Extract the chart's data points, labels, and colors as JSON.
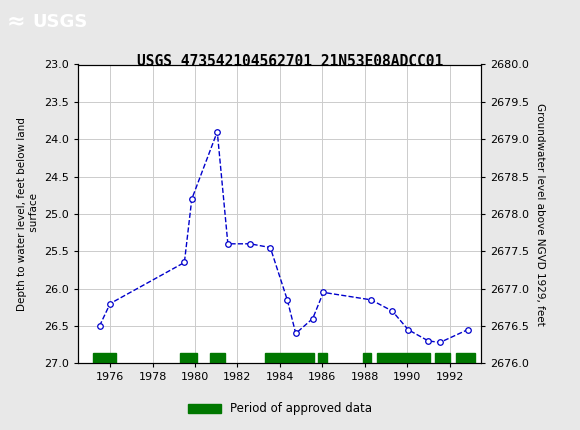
{
  "title": "USGS 473542104562701 21N53E08ADCC01",
  "ylabel_left": "Depth to water level, feet below land\n surface",
  "ylabel_right": "Groundwater level above NGVD 1929, feet",
  "x_data": [
    1975.5,
    1976.0,
    1979.5,
    1979.85,
    1981.05,
    1981.55,
    1982.6,
    1983.55,
    1984.35,
    1984.75,
    1985.55,
    1986.05,
    1988.3,
    1989.3,
    1990.05,
    1991.0,
    1991.55,
    1992.85
  ],
  "y_data": [
    26.5,
    26.2,
    25.65,
    24.8,
    23.9,
    25.4,
    25.4,
    25.45,
    26.15,
    26.6,
    26.4,
    26.05,
    26.15,
    26.3,
    26.55,
    26.7,
    26.72,
    26.55
  ],
  "y_left_min": 23.0,
  "y_left_max": 27.0,
  "y_right_min": 2676.0,
  "y_right_max": 2680.0,
  "x_min": 1974.5,
  "x_max": 1993.5,
  "x_ticks": [
    1976,
    1978,
    1980,
    1982,
    1984,
    1986,
    1988,
    1990,
    1992
  ],
  "y_left_ticks": [
    23.0,
    23.5,
    24.0,
    24.5,
    25.0,
    25.5,
    26.0,
    26.5,
    27.0
  ],
  "y_right_ticks": [
    2680.0,
    2679.5,
    2679.0,
    2678.5,
    2678.0,
    2677.5,
    2677.0,
    2676.5,
    2676.0
  ],
  "line_color": "#0000cc",
  "marker_color": "#0000cc",
  "line_style": "--",
  "marker_style": "o",
  "marker_size": 4,
  "grid_color": "#cccccc",
  "bg_color": "#e8e8e8",
  "plot_bg": "#ffffff",
  "header_color": "#1a6b3c",
  "legend_label": "Period of approved data",
  "legend_color": "#007700",
  "approved_bars": [
    [
      1975.2,
      1976.3
    ],
    [
      1979.3,
      1980.1
    ],
    [
      1980.7,
      1981.4
    ],
    [
      1983.3,
      1985.6
    ],
    [
      1985.8,
      1986.2
    ],
    [
      1987.9,
      1988.3
    ],
    [
      1988.6,
      1991.1
    ],
    [
      1991.3,
      1992.0
    ],
    [
      1992.3,
      1993.2
    ]
  ]
}
